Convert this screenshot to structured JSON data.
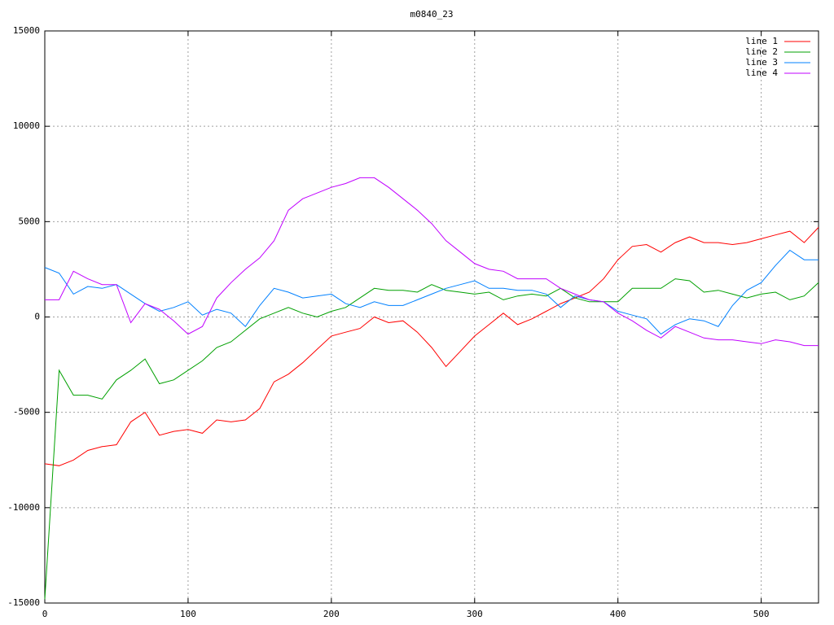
{
  "chart_data": {
    "type": "line",
    "title": "m0840_23",
    "x": [
      0,
      10,
      20,
      30,
      40,
      50,
      60,
      70,
      80,
      90,
      100,
      110,
      120,
      130,
      140,
      150,
      160,
      170,
      180,
      190,
      200,
      210,
      220,
      230,
      240,
      250,
      260,
      270,
      280,
      290,
      300,
      310,
      320,
      330,
      340,
      350,
      360,
      370,
      380,
      390,
      400,
      410,
      420,
      430,
      440,
      450,
      460,
      470,
      480,
      490,
      500,
      510,
      520,
      530,
      540
    ],
    "series": [
      {
        "name": "line 1",
        "color": "#ff0000",
        "values": [
          -7700,
          -7800,
          -7500,
          -7000,
          -6800,
          -6700,
          -5500,
          -5000,
          -6200,
          -6000,
          -5900,
          -6100,
          -5400,
          -5500,
          -5400,
          -4800,
          -3400,
          -3000,
          -2400,
          -1700,
          -1000,
          -800,
          -600,
          0,
          -300,
          -200,
          -800,
          -1600,
          -2600,
          -1800,
          -1000,
          -400,
          200,
          -400,
          -100,
          300,
          700,
          1000,
          1300,
          2000,
          3000,
          3700,
          3800,
          3400,
          3900,
          4200,
          3900,
          3900,
          3800,
          3900,
          4100,
          4300,
          4500,
          3900,
          4700
        ]
      },
      {
        "name": "line 2",
        "color": "#00a000",
        "values": [
          -14800,
          -2800,
          -4100,
          -4100,
          -4300,
          -3300,
          -2800,
          -2200,
          -3500,
          -3300,
          -2800,
          -2300,
          -1600,
          -1300,
          -700,
          -100,
          200,
          500,
          200,
          0,
          300,
          500,
          1000,
          1500,
          1400,
          1400,
          1300,
          1700,
          1400,
          1300,
          1200,
          1300,
          900,
          1100,
          1200,
          1100,
          1500,
          1000,
          800,
          800,
          800,
          1500,
          1500,
          1500,
          2000,
          1900,
          1300,
          1400,
          1200,
          1000,
          1200,
          1300,
          900,
          1100,
          1800
        ]
      },
      {
        "name": "line 3",
        "color": "#0080ff",
        "values": [
          2600,
          2300,
          1200,
          1600,
          1500,
          1700,
          1200,
          700,
          300,
          500,
          800,
          100,
          400,
          200,
          -500,
          600,
          1500,
          1300,
          1000,
          1100,
          1200,
          700,
          500,
          800,
          600,
          600,
          900,
          1200,
          1500,
          1700,
          1900,
          1500,
          1500,
          1400,
          1400,
          1200,
          500,
          1100,
          900,
          800,
          300,
          100,
          -100,
          -900,
          -400,
          -100,
          -200,
          -500,
          600,
          1400,
          1800,
          2700,
          3500,
          3000,
          3000
        ]
      },
      {
        "name": "line 4",
        "color": "#c000ff",
        "values": [
          900,
          900,
          2400,
          2000,
          1700,
          1700,
          -300,
          700,
          400,
          -200,
          -900,
          -500,
          1000,
          1800,
          2500,
          3100,
          4000,
          5600,
          6200,
          6500,
          6800,
          7000,
          7300,
          7300,
          6800,
          6200,
          5600,
          4900,
          4000,
          3400,
          2800,
          2500,
          2400,
          2000,
          2000,
          2000,
          1500,
          1200,
          900,
          800,
          200,
          -200,
          -700,
          -1100,
          -500,
          -800,
          -1100,
          -1200,
          -1200,
          -1300,
          -1400,
          -1200,
          -1300,
          -1500,
          -1500
        ]
      }
    ],
    "xlim": [
      0,
      540
    ],
    "xticks": [
      0,
      100,
      200,
      300,
      400,
      500
    ],
    "ylim": [
      -15000,
      15000
    ],
    "yticks": [
      -15000,
      -10000,
      -5000,
      0,
      5000,
      10000,
      15000
    ],
    "grid": true,
    "legend": "top-right"
  }
}
